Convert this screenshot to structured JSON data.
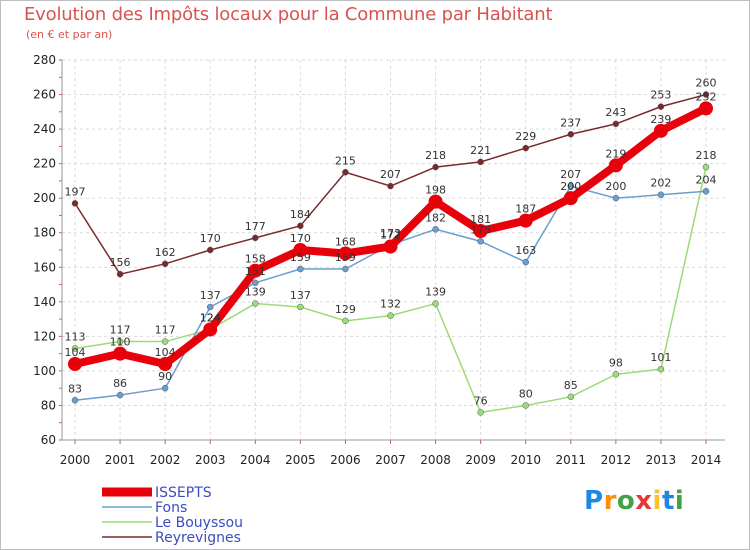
{
  "title": "Evolution des Impôts locaux pour la Commune par Habitant",
  "subtitle": "(en € et par an)",
  "logo": {
    "text": "Proxiti",
    "letters": [
      "P",
      "r",
      "o",
      "x",
      "i",
      "t",
      "i"
    ],
    "colors": [
      "#1e88e5",
      "#ff8f00",
      "#43a047",
      "#e53935",
      "#fbc02d",
      "#1e88e5",
      "#43a047"
    ]
  },
  "chart_data": {
    "type": "line",
    "title": "Evolution des Impôts locaux pour la Commune par Habitant",
    "subtitle": "(en € et par an)",
    "x": [
      "2000",
      "2001",
      "2002",
      "2003",
      "2004",
      "2005",
      "2006",
      "2007",
      "2008",
      "2009",
      "2010",
      "2011",
      "2012",
      "2013",
      "2014"
    ],
    "ylim": [
      60,
      280
    ],
    "yticks": [
      "60",
      "80",
      "100",
      "120",
      "140",
      "160",
      "180",
      "200",
      "220",
      "240",
      "260",
      "280"
    ],
    "grid": true,
    "legend_position": "bottom-left",
    "series": [
      {
        "name": "ISSEPTS",
        "color": "#e8000b",
        "values": [
          104,
          110,
          104,
          124,
          158,
          170,
          168,
          172,
          198,
          181,
          187,
          200,
          219,
          239,
          252
        ],
        "labels": [
          "104",
          "110",
          "104",
          "124",
          "158",
          "170",
          "168",
          "172",
          "198",
          "181",
          "187",
          "200",
          "219",
          "239",
          "252"
        ]
      },
      {
        "name": "Fons",
        "color": "#6a9ecf",
        "values": [
          83,
          86,
          90,
          137,
          151,
          159,
          159,
          173,
          182,
          175,
          163,
          207,
          200,
          202,
          204
        ],
        "labels": [
          "83",
          "86",
          "90",
          "137",
          "151",
          "159",
          "159",
          "173",
          "182",
          "175",
          "163",
          "207",
          "200",
          "202",
          "204"
        ]
      },
      {
        "name": "Le Bouyssou",
        "color": "#99dd77",
        "values": [
          113,
          117,
          117,
          124,
          139,
          137,
          129,
          132,
          139,
          76,
          80,
          85,
          98,
          101,
          218
        ],
        "labels": [
          "113",
          "117",
          "117",
          "124",
          "139",
          "137",
          "129",
          "132",
          "139",
          "76",
          "80",
          "85",
          "98",
          "101",
          "218"
        ]
      },
      {
        "name": "Reyrevignes",
        "color": "#7a2a2a",
        "values": [
          197,
          156,
          162,
          170,
          177,
          184,
          215,
          207,
          218,
          221,
          229,
          237,
          243,
          253,
          260
        ],
        "labels": [
          "197",
          "156",
          "162",
          "170",
          "177",
          "184",
          "215",
          "207",
          "218",
          "221",
          "229",
          "237",
          "243",
          "253",
          "260"
        ]
      }
    ]
  }
}
